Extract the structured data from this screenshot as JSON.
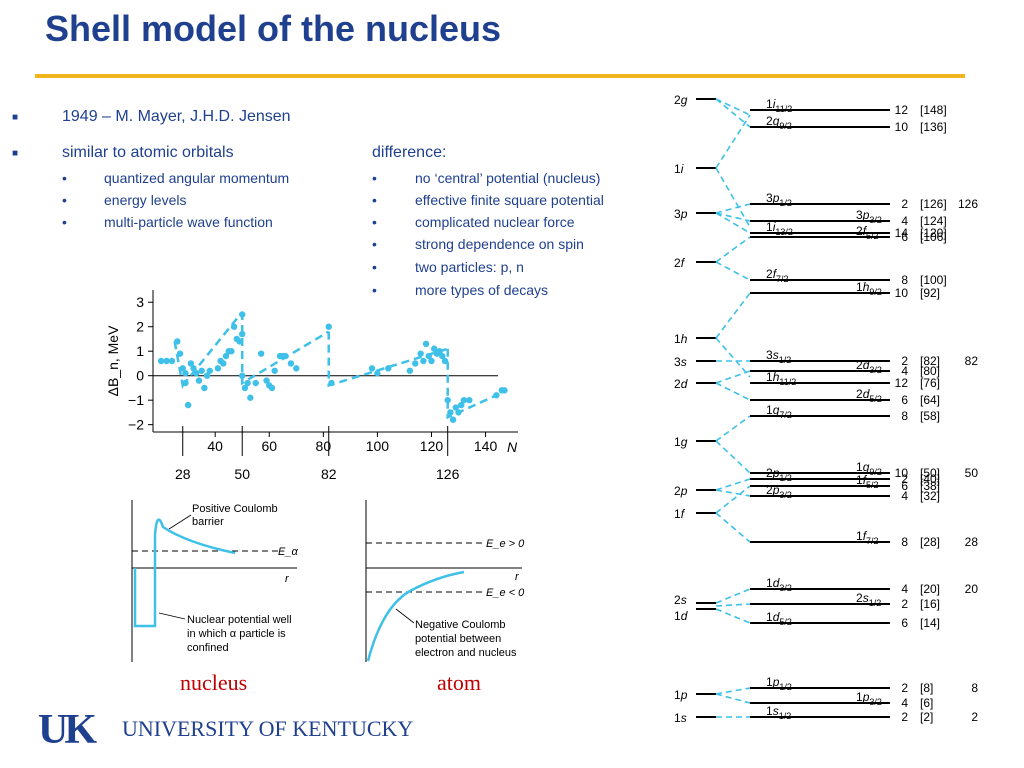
{
  "slide": {
    "title": "Shell model of the nucleus"
  },
  "left_bullets": {
    "b1": "1949 – M. Mayer, J.H.D. Jensen",
    "b2": "similar to atomic orbitals",
    "b2_subs": [
      "quantized angular momentum",
      "energy levels",
      "multi-particle wave function"
    ]
  },
  "right_bullets": {
    "header": "difference:",
    "subs": [
      "no ‘central’ potential (nucleus)",
      "effective finite square potential",
      "complicated nuclear force",
      "strong dependence on spin",
      "two particles: p, n",
      "more types of decays"
    ]
  },
  "colors": {
    "title": "#1f3f8f",
    "rule": "#f0b41c",
    "curve": "#3ec0e8",
    "caption": "#c00000"
  },
  "chart_data": {
    "type": "scatter",
    "ylabel": "ΔB_n, MeV",
    "xlabel": "N",
    "xlim": [
      17,
      152
    ],
    "ylim": [
      -2.3,
      3.5
    ],
    "x_ticks": [
      40,
      60,
      80,
      100,
      120,
      140
    ],
    "y_ticks": [
      3,
      2,
      1,
      0,
      -1,
      -2
    ],
    "magic_numbers": [
      28,
      50,
      82,
      126
    ],
    "points": [
      [
        20,
        0.6
      ],
      [
        22,
        0.6
      ],
      [
        24,
        0.6
      ],
      [
        26,
        1.4
      ],
      [
        27,
        0.9
      ],
      [
        28,
        0.3
      ],
      [
        29,
        0.1
      ],
      [
        29,
        -0.3
      ],
      [
        30,
        -1.2
      ],
      [
        31,
        0.5
      ],
      [
        32,
        0.3
      ],
      [
        33,
        0.1
      ],
      [
        34,
        -0.2
      ],
      [
        35,
        0.2
      ],
      [
        36,
        -0.5
      ],
      [
        37,
        0.0
      ],
      [
        38,
        0.2
      ],
      [
        41,
        0.3
      ],
      [
        42,
        0.6
      ],
      [
        43,
        0.5
      ],
      [
        44,
        0.8
      ],
      [
        45,
        1.0
      ],
      [
        46,
        1.0
      ],
      [
        47,
        2.0
      ],
      [
        48,
        1.5
      ],
      [
        49,
        1.4
      ],
      [
        50,
        2.5
      ],
      [
        50,
        1.7
      ],
      [
        50,
        0.0
      ],
      [
        51,
        -0.5
      ],
      [
        52,
        -0.3
      ],
      [
        53,
        -0.9
      ],
      [
        55,
        -0.3
      ],
      [
        57,
        0.9
      ],
      [
        59,
        -0.2
      ],
      [
        60,
        -0.4
      ],
      [
        61,
        -0.5
      ],
      [
        62,
        0.2
      ],
      [
        64,
        0.8
      ],
      [
        65,
        0.8
      ],
      [
        66,
        0.8
      ],
      [
        68,
        0.5
      ],
      [
        70,
        0.3
      ],
      [
        82,
        2.0
      ],
      [
        83,
        -0.3
      ],
      [
        98,
        0.3
      ],
      [
        100,
        0.1
      ],
      [
        104,
        0.3
      ],
      [
        112,
        0.2
      ],
      [
        114,
        0.5
      ],
      [
        116,
        0.9
      ],
      [
        117,
        0.6
      ],
      [
        118,
        1.3
      ],
      [
        119,
        0.8
      ],
      [
        120,
        0.6
      ],
      [
        121,
        1.1
      ],
      [
        122,
        0.9
      ],
      [
        123,
        1.0
      ],
      [
        124,
        0.8
      ],
      [
        125,
        0.6
      ],
      [
        126,
        -1.0
      ],
      [
        127,
        -1.5
      ],
      [
        128,
        -1.8
      ],
      [
        129,
        -1.3
      ],
      [
        130,
        -1.5
      ],
      [
        131,
        -1.2
      ],
      [
        132,
        -1.0
      ],
      [
        134,
        -1.0
      ],
      [
        144,
        -0.8
      ],
      [
        146,
        -0.6
      ],
      [
        147,
        -0.6
      ]
    ],
    "trend_segments": [
      [
        [
          25,
          1.4
        ],
        [
          28,
          -0.4
        ],
        [
          29,
          -0.2
        ]
      ],
      [
        [
          28,
          -0.4
        ],
        [
          50,
          2.6
        ]
      ],
      [
        [
          50,
          2.6
        ],
        [
          50,
          -0.3
        ],
        [
          82,
          1.8
        ]
      ],
      [
        [
          82,
          1.8
        ],
        [
          82,
          -0.4
        ],
        [
          126,
          1.1
        ]
      ],
      [
        [
          126,
          1.1
        ],
        [
          126,
          -1.7
        ],
        [
          148,
          -0.6
        ]
      ]
    ]
  },
  "panel_nucleus": {
    "barrier_label": [
      "Positive Coulomb",
      "barrier"
    ],
    "e_alpha": "E_α",
    "r": "r",
    "well_label": [
      "Nuclear potential well",
      "in which α particle is",
      "confined"
    ],
    "caption": "nucleus"
  },
  "panel_atom": {
    "e_pos": "E_e > 0",
    "e_neg": "E_e < 0",
    "r": "r",
    "coulomb_label": [
      "Negative Coulomb",
      "potential between",
      "electron and nucleus"
    ],
    "caption": "atom"
  },
  "levels": {
    "left": [
      {
        "n": "2",
        "l": "g"
      },
      {
        "n": "1",
        "l": "i"
      },
      {
        "n": "3",
        "l": "p"
      },
      {
        "n": "2",
        "l": "f"
      },
      {
        "n": "1",
        "l": "h"
      },
      {
        "n": "3",
        "l": "s"
      },
      {
        "n": "2",
        "l": "d"
      },
      {
        "n": "1",
        "l": "g"
      },
      {
        "n": "2",
        "l": "p"
      },
      {
        "n": "1",
        "l": "f"
      },
      {
        "n": "2",
        "l": "s"
      },
      {
        "n": "1",
        "l": "d"
      },
      {
        "n": "1",
        "l": "p"
      },
      {
        "n": "1",
        "l": "s"
      }
    ],
    "split": [
      {
        "n": "1",
        "l": "i",
        "j": "11/2",
        "deg": "12",
        "total": "[148]",
        "magic": ""
      },
      {
        "n": "2",
        "l": "g",
        "j": "9/2",
        "deg": "10",
        "total": "[136]",
        "magic": ""
      },
      {
        "n": "3",
        "l": "p",
        "j": "1/2",
        "deg": "2",
        "total": "[126]",
        "magic": "126"
      },
      {
        "n": "3",
        "l": "p",
        "j": "3/2",
        "deg": "4",
        "total": "[124]",
        "magic": ""
      },
      {
        "n": "1",
        "l": "i",
        "j": "13/2",
        "deg": "14",
        "total": "[120]",
        "magic": ""
      },
      {
        "n": "2",
        "l": "f",
        "j": "5/2",
        "deg": "6",
        "total": "[106]",
        "magic": ""
      },
      {
        "n": "2",
        "l": "f",
        "j": "7/2",
        "deg": "8",
        "total": "[100]",
        "magic": ""
      },
      {
        "n": "1",
        "l": "h",
        "j": "9/2",
        "deg": "10",
        "total": "[92]",
        "magic": ""
      },
      {
        "n": "3",
        "l": "s",
        "j": "1/2",
        "deg": "2",
        "total": "[82]",
        "magic": "82"
      },
      {
        "n": "2",
        "l": "d",
        "j": "3/2",
        "deg": "4",
        "total": "[80]",
        "magic": ""
      },
      {
        "n": "1",
        "l": "h",
        "j": "11/2",
        "deg": "12",
        "total": "[76]",
        "magic": ""
      },
      {
        "n": "2",
        "l": "d",
        "j": "5/2",
        "deg": "6",
        "total": "[64]",
        "magic": ""
      },
      {
        "n": "1",
        "l": "g",
        "j": "7/2",
        "deg": "8",
        "total": "[58]",
        "magic": ""
      },
      {
        "n": "1",
        "l": "g",
        "j": "9/2",
        "deg": "10",
        "total": "[50]",
        "magic": "50"
      },
      {
        "n": "2",
        "l": "p",
        "j": "1/2",
        "deg": "2",
        "total": "[40]",
        "magic": ""
      },
      {
        "n": "1",
        "l": "f",
        "j": "5/2",
        "deg": "6",
        "total": "[38]",
        "magic": ""
      },
      {
        "n": "2",
        "l": "p",
        "j": "3/2",
        "deg": "4",
        "total": "[32]",
        "magic": ""
      },
      {
        "n": "1",
        "l": "f",
        "j": "7/2",
        "deg": "8",
        "total": "[28]",
        "magic": "28"
      },
      {
        "n": "1",
        "l": "d",
        "j": "3/2",
        "deg": "4",
        "total": "[20]",
        "magic": "20"
      },
      {
        "n": "2",
        "l": "s",
        "j": "1/2",
        "deg": "2",
        "total": "[16]",
        "magic": ""
      },
      {
        "n": "1",
        "l": "d",
        "j": "5/2",
        "deg": "6",
        "total": "[14]",
        "magic": ""
      },
      {
        "n": "1",
        "l": "p",
        "j": "1/2",
        "deg": "2",
        "total": "[8]",
        "magic": "8"
      },
      {
        "n": "1",
        "l": "p",
        "j": "3/2",
        "deg": "4",
        "total": "[6]",
        "magic": ""
      },
      {
        "n": "1",
        "l": "s",
        "j": "1/2",
        "deg": "2",
        "total": "[2]",
        "magic": "2"
      }
    ]
  },
  "footer": {
    "logo_mark": "UK",
    "university": "UNIVERSITY OF KENTUCKY"
  }
}
